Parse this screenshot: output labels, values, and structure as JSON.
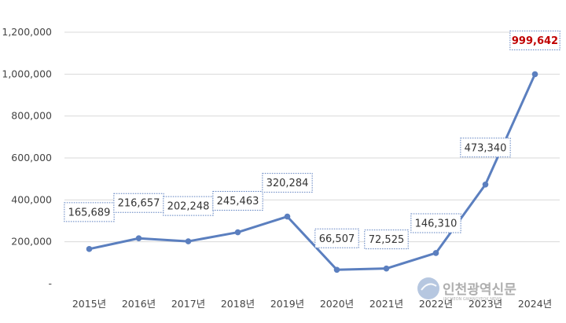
{
  "chart_data": {
    "type": "line",
    "categories": [
      "2015년",
      "2016년",
      "2017년",
      "2018년",
      "2019년",
      "2020년",
      "2021년",
      "2022년",
      "2023년",
      "2024년"
    ],
    "values": [
      165689,
      216657,
      202248,
      245463,
      320284,
      66507,
      72525,
      146310,
      473340,
      999642
    ],
    "data_labels": [
      "165,689",
      "216,657",
      "202,248",
      "245,463",
      "320,284",
      "66,507",
      "72,525",
      "146,310",
      "473,340",
      "999,642"
    ],
    "y_ticks": [
      {
        "value": 0,
        "label": "-"
      },
      {
        "value": 200000,
        "label": "200,000"
      },
      {
        "value": 400000,
        "label": "400,000"
      },
      {
        "value": 600000,
        "label": "600,000"
      },
      {
        "value": 800000,
        "label": "800,000"
      },
      {
        "value": 1000000,
        "label": "1,000,000"
      },
      {
        "value": 1200000,
        "label": "1,200,000"
      }
    ],
    "ylim": [
      0,
      1200000
    ],
    "grid": true,
    "line_color": "#5b7fbf",
    "highlight_label_color": "#c00000",
    "highlight_index": 9
  },
  "watermark": {
    "text": "인천광역신문",
    "sub": "INCHEON GWANGYEOK NEWS"
  }
}
